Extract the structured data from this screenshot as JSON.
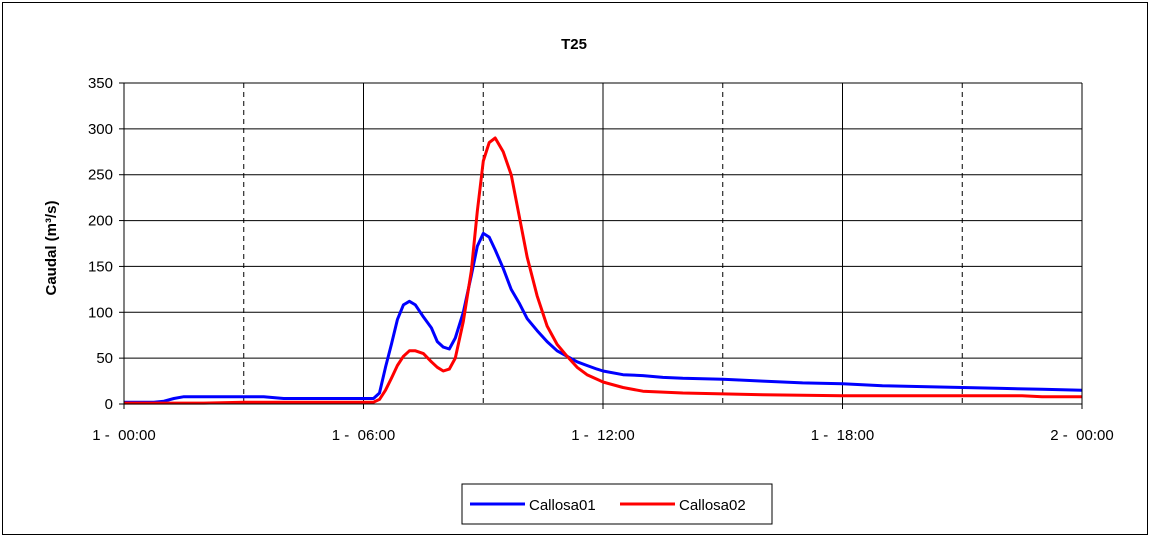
{
  "chart_data": {
    "type": "line",
    "title": "T25",
    "xlabel": "",
    "ylabel": "Caudal (m³/s)",
    "ylim": [
      0,
      350
    ],
    "yticks": [
      "0",
      "50",
      "100",
      "150",
      "200",
      "250",
      "300",
      "350"
    ],
    "xlim_hours": [
      0,
      24
    ],
    "xticks": [
      {
        "hour": 0,
        "label": "1 -  00:00"
      },
      {
        "hour": 6,
        "label": "1 -  06:00"
      },
      {
        "hour": 12,
        "label": "1 -  12:00"
      },
      {
        "hour": 18,
        "label": "1 -  18:00"
      },
      {
        "hour": 24,
        "label": "2 -  00:00"
      }
    ],
    "minor_gridlines_hours": [
      3,
      9,
      15,
      21
    ],
    "grid": true,
    "legend_position": "bottom-center",
    "series": [
      {
        "name": "Callosa01",
        "color": "#0000ff",
        "x_hours": [
          0,
          0.5,
          0.75,
          1.0,
          1.25,
          1.5,
          2,
          3,
          3.5,
          4,
          5,
          6,
          6.25,
          6.4,
          6.55,
          6.7,
          6.85,
          7.0,
          7.15,
          7.3,
          7.5,
          7.7,
          7.85,
          8.0,
          8.15,
          8.3,
          8.5,
          8.7,
          8.85,
          9.0,
          9.15,
          9.3,
          9.5,
          9.7,
          9.9,
          10.1,
          10.35,
          10.6,
          10.85,
          11.1,
          11.35,
          11.6,
          11.85,
          12.0,
          12.5,
          13,
          13.5,
          14,
          15,
          16,
          17,
          18,
          19,
          20,
          21,
          22,
          23,
          24
        ],
        "y": [
          2,
          2,
          2,
          3,
          6,
          8,
          8,
          8,
          8,
          6,
          6,
          6,
          6,
          12,
          40,
          65,
          92,
          108,
          112,
          108,
          95,
          83,
          68,
          62,
          60,
          72,
          100,
          140,
          172,
          186,
          182,
          168,
          148,
          125,
          110,
          93,
          80,
          68,
          58,
          52,
          46,
          42,
          38,
          36,
          32,
          31,
          29,
          28,
          27,
          25,
          23,
          22,
          20,
          19,
          18,
          17,
          16,
          15
        ]
      },
      {
        "name": "Callosa02",
        "color": "#ff0000",
        "x_hours": [
          0,
          1,
          2,
          3,
          4,
          5,
          6,
          6.25,
          6.4,
          6.55,
          6.7,
          6.85,
          7.0,
          7.15,
          7.3,
          7.5,
          7.7,
          7.85,
          8.0,
          8.15,
          8.3,
          8.5,
          8.7,
          8.85,
          9.0,
          9.15,
          9.3,
          9.5,
          9.7,
          9.9,
          10.1,
          10.35,
          10.6,
          10.85,
          11.1,
          11.35,
          11.6,
          11.85,
          12.0,
          12.5,
          13,
          14,
          15,
          16,
          18,
          20,
          22,
          22.5,
          23,
          24
        ],
        "y": [
          1,
          1,
          1,
          2,
          2,
          2,
          2,
          2,
          5,
          15,
          28,
          42,
          52,
          58,
          58,
          55,
          46,
          40,
          36,
          38,
          50,
          90,
          145,
          210,
          265,
          285,
          290,
          275,
          250,
          205,
          160,
          118,
          85,
          65,
          52,
          40,
          32,
          27,
          24,
          18,
          14,
          12,
          11,
          10,
          9,
          9,
          9,
          9,
          8,
          8
        ]
      }
    ]
  }
}
